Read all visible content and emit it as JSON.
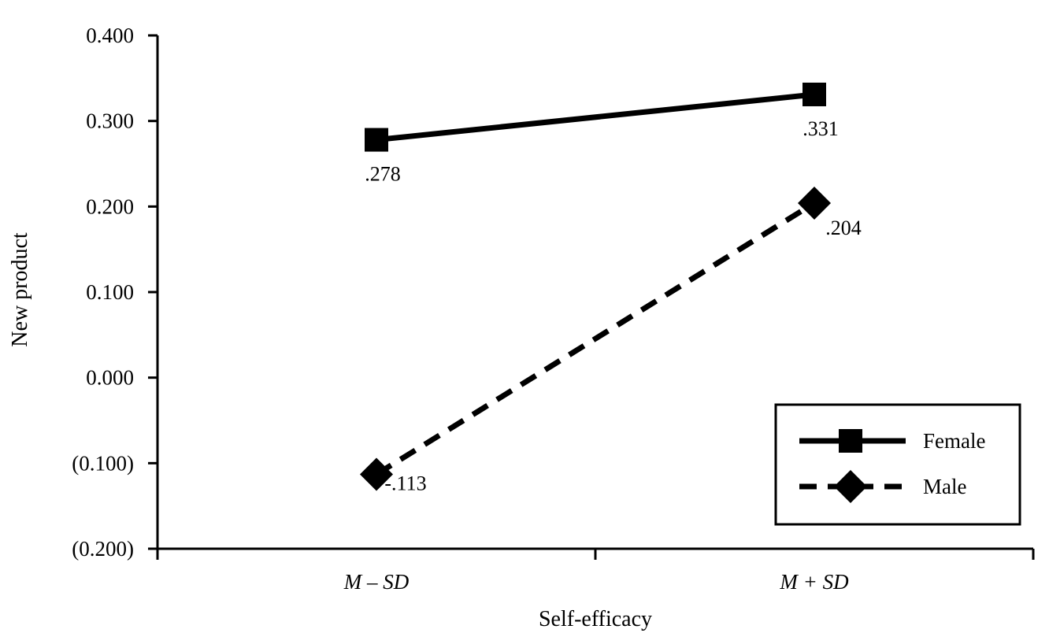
{
  "chart_data": {
    "type": "line",
    "title": "",
    "xlabel": "Self-efficacy",
    "ylabel": "New product",
    "categories": [
      "M – SD",
      "M + SD"
    ],
    "ylim": [
      -0.2,
      0.4
    ],
    "yticks": [
      0.4,
      0.3,
      0.2,
      0.1,
      0.0,
      -0.1,
      -0.2
    ],
    "ytick_labels": [
      "0.400",
      "0.300",
      "0.200",
      "0.100",
      "0.000",
      "(0.100)",
      "(0.200)"
    ],
    "grid": false,
    "legend_position": "bottom-right",
    "series": [
      {
        "name": "Female",
        "values": [
          0.278,
          0.331
        ],
        "labels": [
          ".278",
          ".331"
        ],
        "marker": "square",
        "line_style": "solid",
        "color": "#000000"
      },
      {
        "name": "Male",
        "values": [
          -0.113,
          0.204
        ],
        "labels": [
          "-.113",
          ".204"
        ],
        "marker": "diamond",
        "line_style": "dashed",
        "color": "#000000"
      }
    ]
  }
}
